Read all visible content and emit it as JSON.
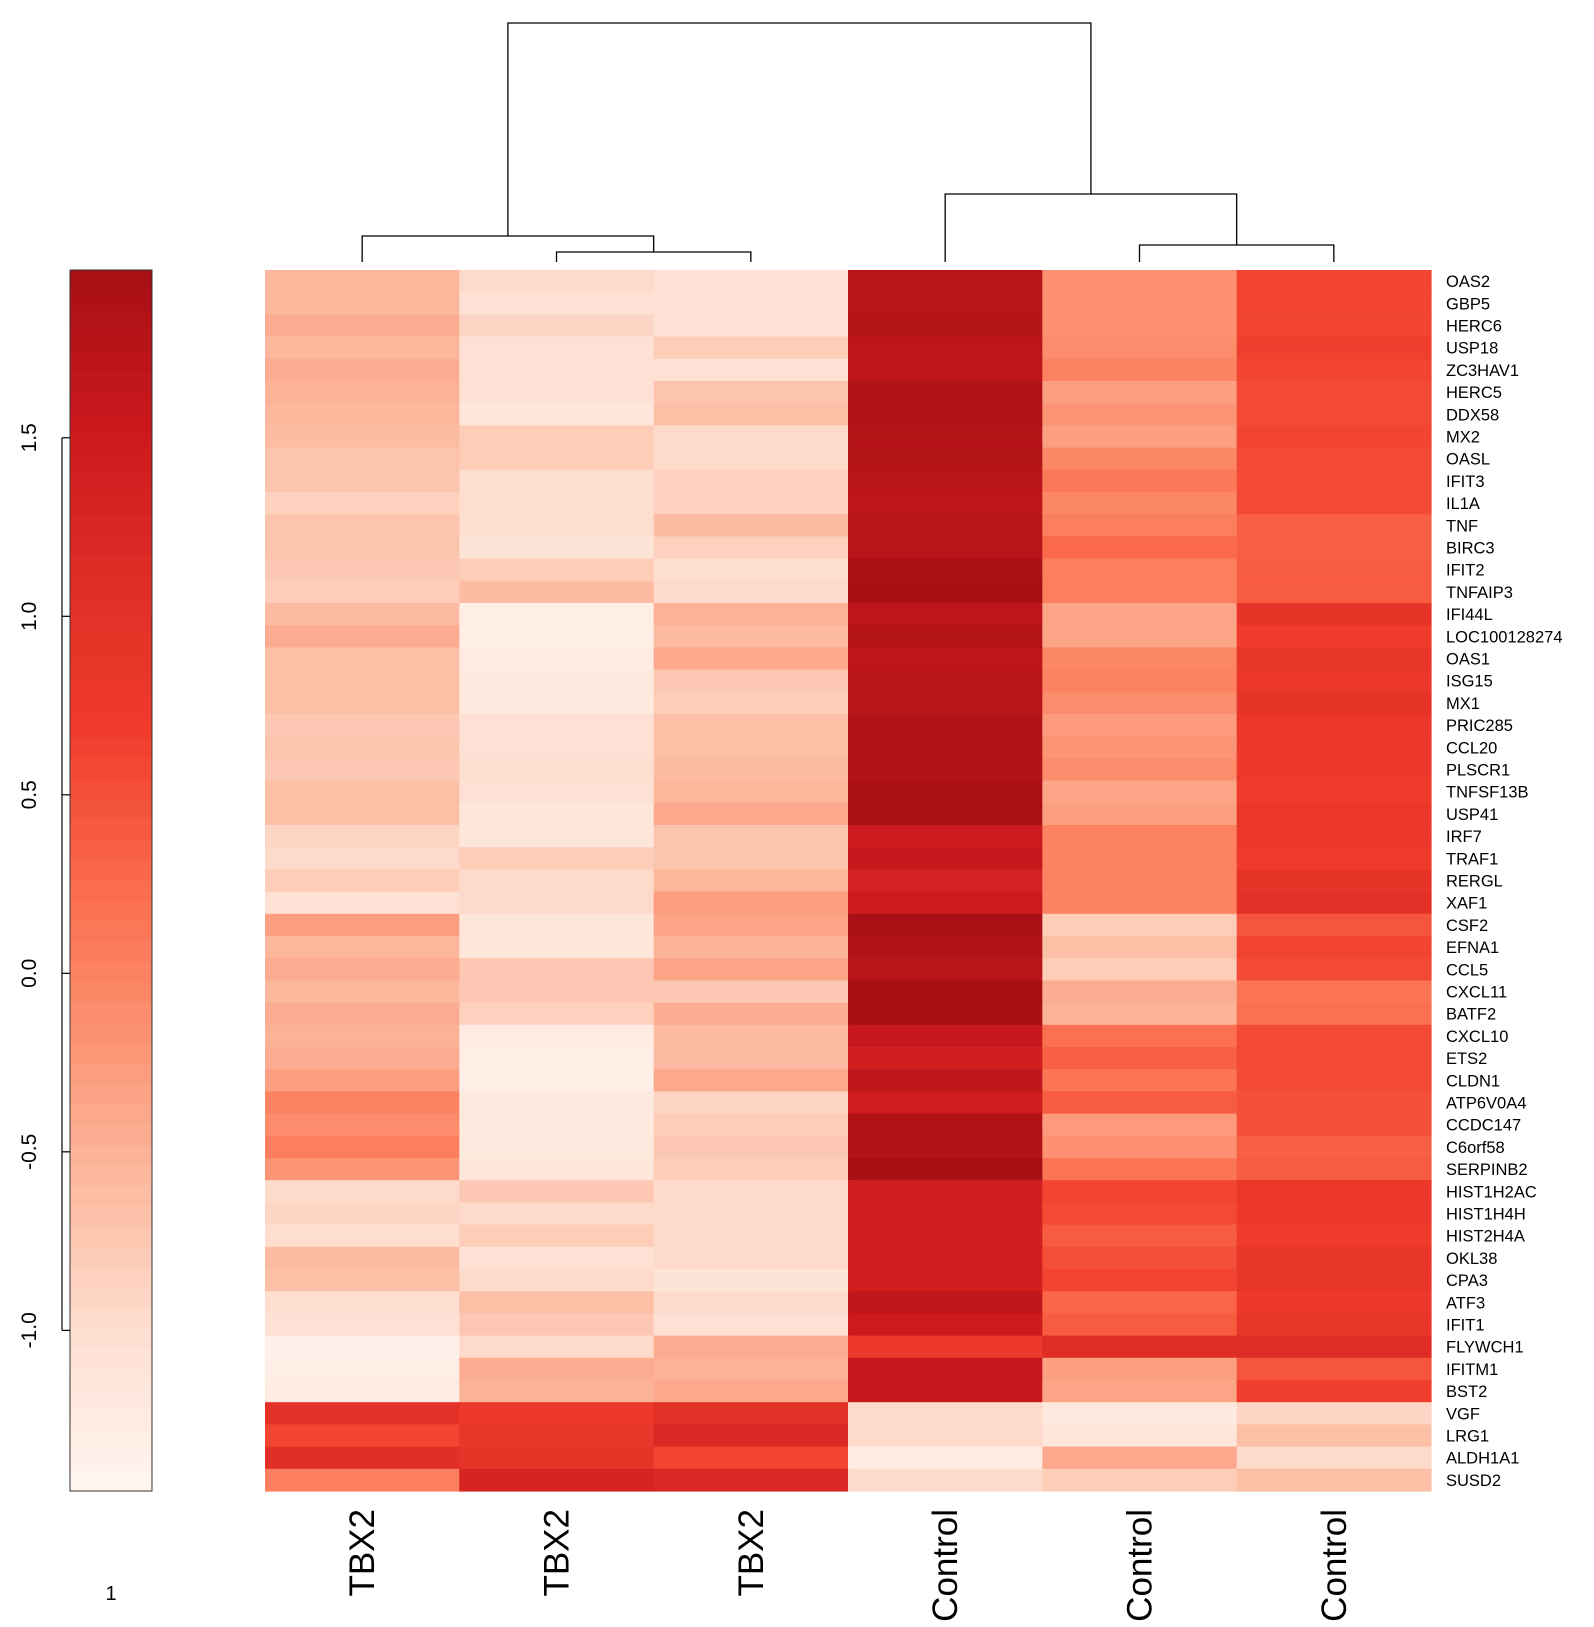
{
  "chart_data": {
    "type": "heatmap",
    "columns": [
      "TBX2",
      "TBX2",
      "TBX2",
      "Control",
      "Control",
      "Control"
    ],
    "rows": [
      "OAS2",
      "GBP5",
      "HERC6",
      "USP18",
      "ZC3HAV1",
      "HERC5",
      "DDX58",
      "MX2",
      "OASL",
      "IFIT3",
      "IL1A",
      "TNF",
      "BIRC3",
      "IFIT2",
      "TNFAIP3",
      "IFI44L",
      "LOC100128274",
      "OAS1",
      "ISG15",
      "MX1",
      "PRIC285",
      "CCL20",
      "PLSCR1",
      "TNFSF13B",
      "USP41",
      "IRF7",
      "TRAF1",
      "RERGL",
      "XAF1",
      "CSF2",
      "EFNA1",
      "CCL5",
      "CXCL11",
      "BATF2",
      "CXCL10",
      "ETS2",
      "CLDN1",
      "ATP6V0A4",
      "CCDC147",
      "C6orf58",
      "SERPINB2",
      "HIST1H2AC",
      "HIST1H4H",
      "HIST2H4A",
      "OKL38",
      "CPA3",
      "ATF3",
      "IFIT1",
      "FLYWCH1",
      "IFITM1",
      "BST2",
      "VGF",
      "LRG1",
      "ALDH1A1",
      "SUSD2"
    ],
    "values": [
      [
        -0.55,
        -0.95,
        -1.05,
        1.75,
        -0.15,
        0.6
      ],
      [
        -0.55,
        -1.05,
        -1.05,
        1.75,
        -0.15,
        0.6
      ],
      [
        -0.45,
        -0.9,
        -1.05,
        1.8,
        -0.15,
        0.6
      ],
      [
        -0.55,
        -1.05,
        -0.8,
        1.7,
        -0.1,
        0.65
      ],
      [
        -0.45,
        -1.05,
        -1.05,
        1.7,
        0.0,
        0.6
      ],
      [
        -0.5,
        -1.05,
        -0.7,
        1.85,
        -0.3,
        0.55
      ],
      [
        -0.55,
        -1.15,
        -0.65,
        1.85,
        -0.2,
        0.55
      ],
      [
        -0.6,
        -0.8,
        -0.95,
        1.8,
        -0.3,
        0.6
      ],
      [
        -0.7,
        -0.8,
        -0.95,
        1.8,
        -0.05,
        0.55
      ],
      [
        -0.7,
        -1.0,
        -0.85,
        1.75,
        0.1,
        0.55
      ],
      [
        -0.85,
        -1.0,
        -0.85,
        1.7,
        -0.05,
        0.55
      ],
      [
        -0.7,
        -1.0,
        -0.6,
        1.75,
        0.05,
        0.35
      ],
      [
        -0.7,
        -1.1,
        -0.85,
        1.75,
        0.25,
        0.35
      ],
      [
        -0.75,
        -0.8,
        -1.0,
        1.9,
        0.05,
        0.4
      ],
      [
        -0.8,
        -0.6,
        -0.95,
        1.95,
        0.05,
        0.4
      ],
      [
        -0.6,
        -1.3,
        -0.5,
        1.7,
        -0.35,
        0.9
      ],
      [
        -0.45,
        -1.3,
        -0.6,
        1.8,
        -0.35,
        0.7
      ],
      [
        -0.65,
        -1.25,
        -0.4,
        1.7,
        -0.05,
        0.85
      ],
      [
        -0.65,
        -1.2,
        -0.75,
        1.75,
        0.0,
        0.8
      ],
      [
        -0.65,
        -1.2,
        -0.8,
        1.75,
        -0.1,
        0.9
      ],
      [
        -0.75,
        -1.05,
        -0.65,
        1.85,
        -0.25,
        0.8
      ],
      [
        -0.7,
        -1.05,
        -0.65,
        1.85,
        -0.2,
        0.75
      ],
      [
        -0.75,
        -1.0,
        -0.6,
        1.85,
        -0.1,
        0.75
      ],
      [
        -0.65,
        -1.05,
        -0.55,
        1.9,
        -0.35,
        0.7
      ],
      [
        -0.65,
        -1.15,
        -0.4,
        1.9,
        -0.3,
        0.8
      ],
      [
        -0.9,
        -1.15,
        -0.7,
        1.5,
        0.0,
        0.8
      ],
      [
        -0.95,
        -0.8,
        -0.7,
        1.6,
        0.0,
        0.7
      ],
      [
        -0.8,
        -0.95,
        -0.55,
        1.35,
        0.0,
        0.9
      ],
      [
        -1.05,
        -0.95,
        -0.3,
        1.5,
        0.0,
        1.0
      ],
      [
        -0.3,
        -1.15,
        -0.35,
        1.9,
        -0.8,
        0.45
      ],
      [
        -0.55,
        -1.15,
        -0.5,
        1.85,
        -0.65,
        0.6
      ],
      [
        -0.45,
        -0.75,
        -0.35,
        1.75,
        -0.8,
        0.55
      ],
      [
        -0.55,
        -0.75,
        -0.75,
        1.95,
        -0.45,
        0.15
      ],
      [
        -0.45,
        -0.85,
        -0.45,
        1.95,
        -0.5,
        0.2
      ],
      [
        -0.5,
        -1.25,
        -0.6,
        1.6,
        0.2,
        0.55
      ],
      [
        -0.45,
        -1.3,
        -0.6,
        1.4,
        0.35,
        0.55
      ],
      [
        -0.3,
        -1.3,
        -0.4,
        1.65,
        0.15,
        0.55
      ],
      [
        0.0,
        -1.2,
        -0.9,
        1.45,
        0.4,
        0.5
      ],
      [
        -0.1,
        -1.2,
        -0.8,
        1.85,
        -0.25,
        0.5
      ],
      [
        0.05,
        -1.2,
        -0.75,
        1.85,
        -0.15,
        0.35
      ],
      [
        -0.2,
        -1.15,
        -0.8,
        1.95,
        0.15,
        0.4
      ],
      [
        -0.95,
        -0.75,
        -0.95,
        1.4,
        0.6,
        0.8
      ],
      [
        -0.9,
        -0.95,
        -0.95,
        1.4,
        0.55,
        0.75
      ],
      [
        -1.0,
        -0.8,
        -0.95,
        1.4,
        0.4,
        0.7
      ],
      [
        -0.6,
        -1.05,
        -0.95,
        1.4,
        0.5,
        0.85
      ],
      [
        -0.65,
        -0.95,
        -1.1,
        1.4,
        0.6,
        0.85
      ],
      [
        -1.0,
        -0.65,
        -0.95,
        1.65,
        0.3,
        0.75
      ],
      [
        -1.05,
        -0.75,
        -1.05,
        1.5,
        0.4,
        0.85
      ],
      [
        -1.35,
        -0.95,
        -0.45,
        0.75,
        1.1,
        1.1
      ],
      [
        -1.3,
        -0.45,
        -0.5,
        1.6,
        -0.3,
        0.45
      ],
      [
        -1.25,
        -0.5,
        -0.4,
        1.6,
        -0.35,
        0.65
      ],
      [
        1.0,
        0.75,
        1.0,
        -0.95,
        -1.2,
        -0.9
      ],
      [
        0.6,
        0.85,
        1.2,
        -0.95,
        -1.15,
        -0.65
      ],
      [
        1.05,
        0.9,
        0.6,
        -1.25,
        -0.4,
        -0.95
      ],
      [
        0.05,
        1.3,
        1.2,
        -0.95,
        -0.8,
        -0.65
      ]
    ],
    "color_scale": {
      "low_color": "#fff5f0",
      "high_color": "#a50f15",
      "min": -1.45,
      "max": 1.97
    },
    "legend": {
      "ticks": [
        "-1.0",
        "-0.5",
        "0.0",
        "0.5",
        "1.0",
        "1.5"
      ],
      "tick_values": [
        -1.0,
        -0.5,
        0.0,
        0.5,
        1.0,
        1.5
      ],
      "footnote": "1"
    },
    "column_dendrogram": "((TBX2,(TBX2,TBX2)),(Control,(Control,Control)))"
  }
}
